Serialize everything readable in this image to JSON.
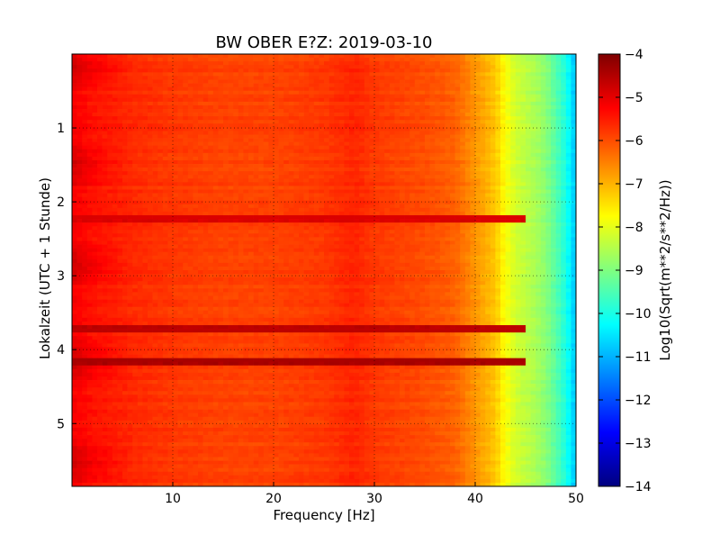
{
  "chart_data": {
    "type": "heatmap",
    "title": "BW OBER E?Z: 2019-03-10",
    "xlabel": "Frequency [Hz]",
    "ylabel": "Lokalzeit (UTC + 1 Stunde)",
    "xlim": [
      0,
      50
    ],
    "ylim": [
      5.85,
      0
    ],
    "x_ticks": [
      10,
      20,
      30,
      40,
      50
    ],
    "y_ticks": [
      1,
      2,
      3,
      4,
      5
    ],
    "grid": true,
    "colorbar": {
      "label": "Log10(Sqrt(m**2/s**2/Hz))",
      "range": [
        -14,
        -4
      ],
      "ticks": [
        -4,
        -5,
        -6,
        -7,
        -8,
        -9,
        -10,
        -11,
        -12,
        -13,
        -14
      ],
      "colormap": "jet"
    },
    "spectrum_profile": {
      "frequency_hz": [
        0,
        2,
        5,
        10,
        15,
        20,
        25,
        28,
        30,
        35,
        38,
        40,
        42,
        43,
        44,
        45,
        46,
        47,
        48,
        49,
        50
      ],
      "log10_amplitude": [
        -5.3,
        -5.5,
        -5.6,
        -5.8,
        -5.9,
        -5.9,
        -5.8,
        -5.6,
        -5.8,
        -6.0,
        -6.2,
        -6.7,
        -7.2,
        -7.8,
        -8.2,
        -8.4,
        -8.6,
        -8.9,
        -9.4,
        -10.0,
        -10.9
      ]
    },
    "bands": [
      {
        "time_h": 2.25,
        "log10_amplitude": -4.9
      },
      {
        "time_h": 3.7,
        "log10_amplitude": -4.6
      },
      {
        "time_h": 4.18,
        "log10_amplitude": -4.4
      }
    ]
  }
}
